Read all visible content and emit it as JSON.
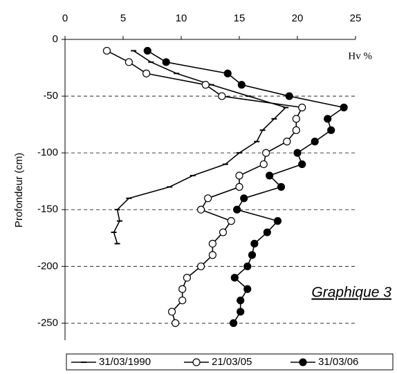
{
  "chart_data": {
    "type": "line",
    "y_label": "Profondeur (cm)",
    "annotations": [
      "Hv %",
      "Graphique 3"
    ],
    "xlim": [
      0,
      25
    ],
    "xticks": [
      0,
      5,
      10,
      15,
      20,
      25
    ],
    "ylim": [
      -265,
      0
    ],
    "yticks": [
      0,
      -50,
      -100,
      -150,
      -200,
      -250
    ],
    "grid": true,
    "series": [
      {
        "name": "31/03/1990",
        "color": "#000000",
        "marker": "dash",
        "y": [
          -10,
          -20,
          -30,
          -40,
          -50,
          -60,
          -70,
          -80,
          -90,
          -100,
          -110,
          -120,
          -130,
          -140,
          -150,
          -160,
          -170,
          -180
        ],
        "x": [
          5.9,
          7.4,
          9.6,
          12.6,
          15.8,
          19.0,
          18.0,
          17.0,
          16.5,
          15.0,
          13.8,
          11.0,
          9.0,
          5.5,
          4.5,
          4.7,
          4.2,
          4.5
        ]
      },
      {
        "name": "21/03/05",
        "color": "#000000",
        "marker": "open",
        "y": [
          -10,
          -20,
          -30,
          -40,
          -50,
          -60,
          -70,
          -80,
          -90,
          -100,
          -110,
          -120,
          -130,
          -140,
          -150,
          -160,
          -170,
          -180,
          -190,
          -200,
          -210,
          -220,
          -230,
          -240,
          -250
        ],
        "x": [
          3.6,
          5.5,
          7.0,
          12.1,
          13.5,
          20.4,
          19.9,
          19.9,
          19.1,
          17.3,
          17.1,
          15.0,
          15.0,
          12.3,
          11.7,
          14.3,
          13.6,
          12.7,
          12.7,
          11.7,
          10.5,
          10.1,
          10.1,
          9.2,
          9.5
        ]
      },
      {
        "name": "31/03/06",
        "color": "#000000",
        "marker": "filled",
        "y": [
          -10,
          -20,
          -30,
          -40,
          -50,
          -60,
          -70,
          -80,
          -90,
          -100,
          -110,
          -120,
          -130,
          -140,
          -150,
          -160,
          -170,
          -180,
          -190,
          -200,
          -210,
          -220,
          -230,
          -240,
          -250
        ],
        "x": [
          7.1,
          8.7,
          14.0,
          15.2,
          19.3,
          24.0,
          22.6,
          22.9,
          21.5,
          20.0,
          20.4,
          17.6,
          18.6,
          15.4,
          14.8,
          18.3,
          17.4,
          16.3,
          16.1,
          15.7,
          14.6,
          15.7,
          15.1,
          15.1,
          14.5
        ]
      }
    ]
  }
}
